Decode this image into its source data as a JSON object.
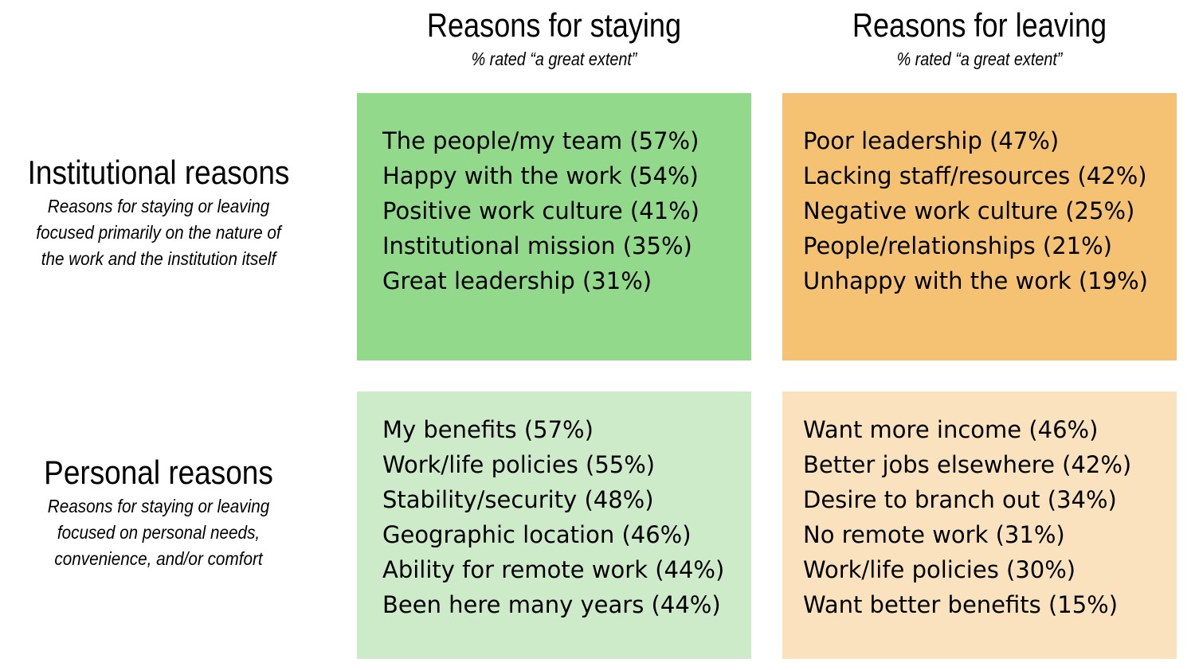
{
  "colors": {
    "staying_institutional": "#92D98B",
    "leaving_institutional": "#F5C274",
    "staying_personal": "#CDEBC9",
    "leaving_personal": "#FAE2BE"
  },
  "columns": [
    {
      "title": "Reasons for staying",
      "subtitle": "% rated “a great extent”"
    },
    {
      "title": "Reasons for leaving",
      "subtitle": "% rated “a great extent”"
    }
  ],
  "rows": [
    {
      "title": "Institutional reasons",
      "subtitle": "Reasons for staying or leaving focused primarily on the nature of the work and the institution itself"
    },
    {
      "title": "Personal reasons",
      "subtitle": "Reasons for staying or leaving focused on personal needs, convenience, and/or comfort"
    }
  ],
  "cells": {
    "institutional_staying": [
      "The people/my team (57%)",
      "Happy with the work (54%)",
      "Positive work culture (41%)",
      "Institutional mission (35%)",
      "Great leadership (31%)"
    ],
    "institutional_leaving": [
      "Poor leadership (47%)",
      "Lacking staff/resources (42%)",
      "Negative work culture (25%)",
      "People/relationships (21%)",
      "Unhappy with the work (19%)"
    ],
    "personal_staying": [
      "My benefits (57%)",
      "Work/life policies (55%)",
      "Stability/security (48%)",
      "Geographic location (46%)",
      "Ability for remote work (44%)",
      "Been here many years (44%)"
    ],
    "personal_leaving": [
      "Want more income (46%)",
      "Better jobs elsewhere (42%)",
      "Desire to branch out (34%)",
      "No remote work (31%)",
      "Work/life policies (30%)",
      "Want better benefits (15%)"
    ]
  }
}
